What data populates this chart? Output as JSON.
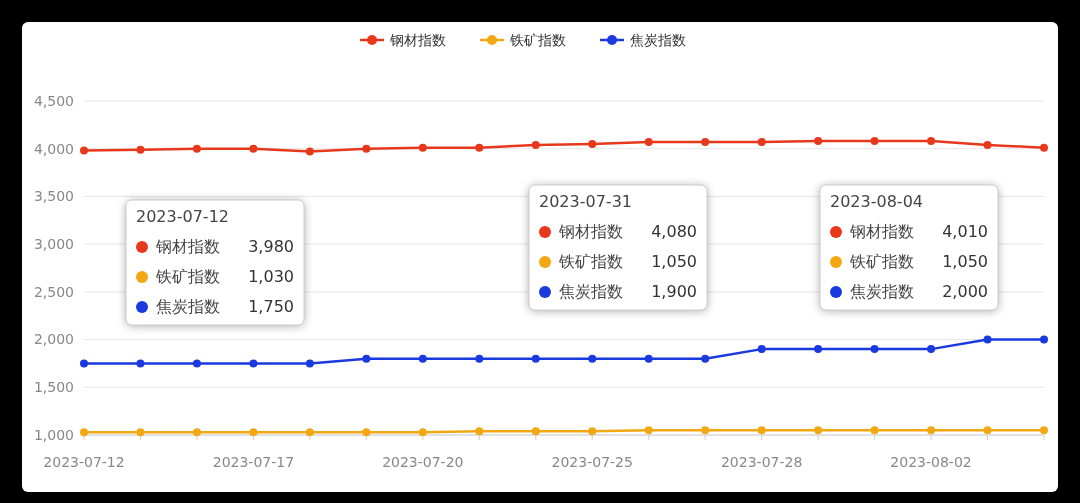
{
  "chart_data": {
    "type": "line",
    "categories": [
      "2023-07-12",
      null,
      null,
      "2023-07-17",
      null,
      null,
      "2023-07-20",
      null,
      null,
      "2023-07-25",
      null,
      null,
      "2023-07-28",
      null,
      null,
      "2023-08-02",
      null,
      null
    ],
    "series": [
      {
        "name": "钢材指数",
        "color": "#e8381c",
        "values": [
          3980,
          3990,
          4000,
          4000,
          3970,
          4000,
          4010,
          4010,
          4040,
          4050,
          4070,
          4070,
          4070,
          4080,
          4080,
          4080,
          4040,
          4010
        ]
      },
      {
        "name": "铁矿指数",
        "color": "#f3a712",
        "values": [
          1030,
          1030,
          1030,
          1030,
          1030,
          1030,
          1030,
          1040,
          1040,
          1040,
          1050,
          1050,
          1050,
          1050,
          1050,
          1050,
          1050,
          1050
        ]
      },
      {
        "name": "焦炭指数",
        "color": "#1a3ae0",
        "values": [
          1750,
          1750,
          1750,
          1750,
          1750,
          1800,
          1800,
          1800,
          1800,
          1800,
          1800,
          1800,
          1900,
          1900,
          1900,
          1900,
          2000,
          2000
        ]
      }
    ],
    "ylim": [
      1000,
      4500
    ],
    "yticks": [
      {
        "value": 1000,
        "label": "1,000"
      },
      {
        "value": 1500,
        "label": "1,500"
      },
      {
        "value": 2000,
        "label": "2,000"
      },
      {
        "value": 2500,
        "label": "2,500"
      },
      {
        "value": 3000,
        "label": "3,000"
      },
      {
        "value": 3500,
        "label": "3,500"
      },
      {
        "value": 4000,
        "label": "4,000"
      },
      {
        "value": 4500,
        "label": "4,500"
      }
    ],
    "grid": "y",
    "legend": "top",
    "marker": "circle",
    "line_style": "solid",
    "annotations": [
      "2023-07-12\n钢材指数\t3,980\n铁矿指数\t1,030\n焦炭指数\t1,750",
      "2023-07-31\n钢材指数\t4,080\n铁矿指数\t1,050\n焦炭指数\t1,900",
      "2023-08-04\n钢材指数\t4,010\n铁矿指数\t1,050\n焦炭指数\t2,000"
    ]
  }
}
